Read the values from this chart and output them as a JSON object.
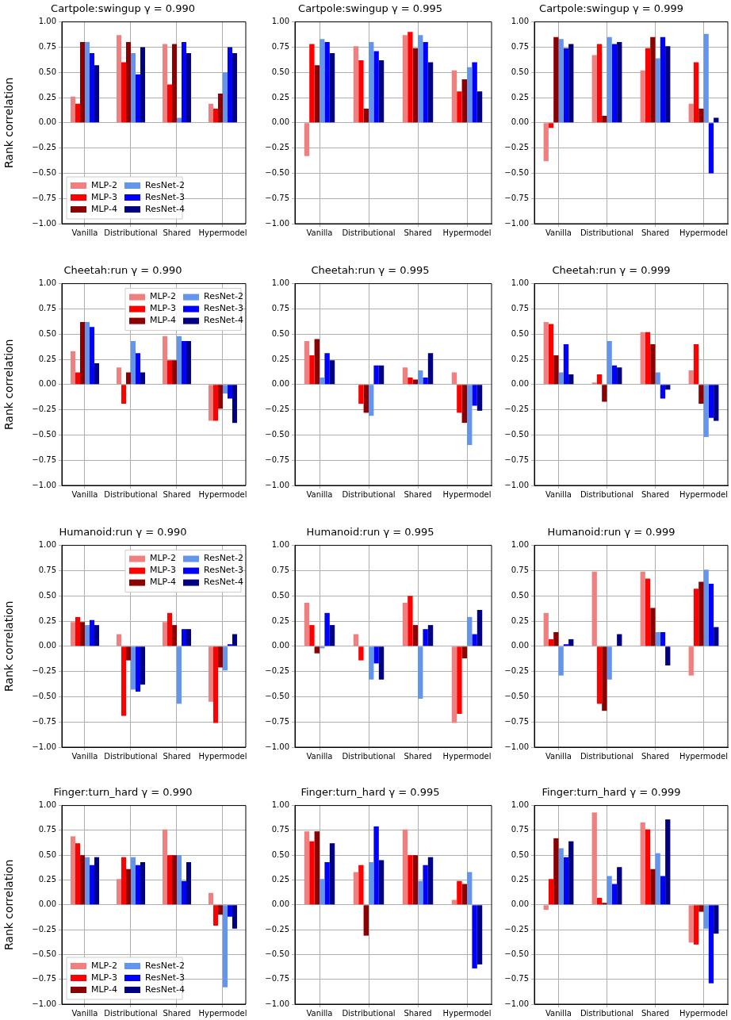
{
  "chart_data": [
    {
      "type": "bar",
      "title": "Cartpole:swingup γ = 0.990",
      "ylabel": "Rank correlation",
      "categories": [
        "Vanilla",
        "Distributional",
        "Shared",
        "Hypermodel"
      ],
      "ylim": [
        -1,
        1
      ],
      "yticks": [
        {
          "value": -1,
          "label": "−1.00"
        },
        {
          "value": -0.75,
          "label": "−0.75"
        },
        {
          "value": -0.5,
          "label": "−0.50"
        },
        {
          "value": -0.25,
          "label": "−0.25"
        },
        {
          "value": 0,
          "label": "0.00"
        },
        {
          "value": 0.25,
          "label": "0.25"
        },
        {
          "value": 0.5,
          "label": "0.50"
        },
        {
          "value": 0.75,
          "label": "0.75"
        },
        {
          "value": 1,
          "label": "1.00"
        }
      ],
      "grid": true,
      "legend": "bottom left",
      "series": [
        {
          "name": "MLP-2",
          "color": "#f08080",
          "values": [
            0.26,
            0.87,
            0.78,
            0.19
          ]
        },
        {
          "name": "MLP-3",
          "color": "#ff0000",
          "values": [
            0.19,
            0.6,
            0.38,
            0.14
          ]
        },
        {
          "name": "MLP-4",
          "color": "#8b0000",
          "values": [
            0.8,
            0.8,
            0.78,
            0.29
          ]
        },
        {
          "name": "ResNet-2",
          "color": "#6495ed",
          "values": [
            0.8,
            0.69,
            0.05,
            0.5
          ]
        },
        {
          "name": "ResNet-3",
          "color": "#0000ff",
          "values": [
            0.69,
            0.48,
            0.8,
            0.75
          ]
        },
        {
          "name": "ResNet-4",
          "color": "#000080",
          "values": [
            0.57,
            0.75,
            0.69,
            0.69
          ]
        }
      ]
    },
    {
      "type": "bar",
      "title": "Cartpole:swingup γ = 0.995",
      "categories": [
        "Vanilla",
        "Distributional",
        "Shared",
        "Hypermodel"
      ],
      "ylim": [
        -1,
        1
      ],
      "yticks": [
        {
          "value": -1,
          "label": "−1.00"
        },
        {
          "value": -0.75,
          "label": "−0.75"
        },
        {
          "value": -0.5,
          "label": "−0.50"
        },
        {
          "value": -0.25,
          "label": "−0.25"
        },
        {
          "value": 0,
          "label": "0.00"
        },
        {
          "value": 0.25,
          "label": "0.25"
        },
        {
          "value": 0.5,
          "label": "0.50"
        },
        {
          "value": 0.75,
          "label": "0.75"
        },
        {
          "value": 1,
          "label": "1.00"
        }
      ],
      "grid": true,
      "series": [
        {
          "color": "#f08080",
          "values": [
            -0.33,
            0.76,
            0.87,
            0.52
          ]
        },
        {
          "color": "#ff0000",
          "values": [
            0.78,
            0.62,
            0.9,
            0.31
          ]
        },
        {
          "color": "#8b0000",
          "values": [
            0.57,
            0.14,
            0.74,
            0.43
          ]
        },
        {
          "color": "#6495ed",
          "values": [
            0.83,
            0.8,
            0.87,
            0.55
          ]
        },
        {
          "color": "#0000ff",
          "values": [
            0.8,
            0.71,
            0.8,
            0.6
          ]
        },
        {
          "color": "#000080",
          "values": [
            0.69,
            0.62,
            0.6,
            0.31
          ]
        }
      ]
    },
    {
      "type": "bar",
      "title": "Cartpole:swingup γ = 0.999",
      "categories": [
        "Vanilla",
        "Distributional",
        "Shared",
        "Hypermodel"
      ],
      "ylim": [
        -1,
        1
      ],
      "yticks": [
        {
          "value": -1,
          "label": "−1.00"
        },
        {
          "value": -0.75,
          "label": "−0.75"
        },
        {
          "value": -0.5,
          "label": "−0.50"
        },
        {
          "value": -0.25,
          "label": "−0.25"
        },
        {
          "value": 0,
          "label": "0.00"
        },
        {
          "value": 0.25,
          "label": "0.25"
        },
        {
          "value": 0.5,
          "label": "0.50"
        },
        {
          "value": 0.75,
          "label": "0.75"
        },
        {
          "value": 1,
          "label": "1.00"
        }
      ],
      "grid": true,
      "series": [
        {
          "color": "#f08080",
          "values": [
            -0.38,
            0.67,
            0.52,
            0.19
          ]
        },
        {
          "color": "#ff0000",
          "values": [
            -0.05,
            0.78,
            0.74,
            0.6
          ]
        },
        {
          "color": "#8b0000",
          "values": [
            0.85,
            0.07,
            0.85,
            0.14
          ]
        },
        {
          "color": "#6495ed",
          "values": [
            0.83,
            0.85,
            0.64,
            0.88
          ]
        },
        {
          "color": "#0000ff",
          "values": [
            0.74,
            0.78,
            0.85,
            -0.5
          ]
        },
        {
          "color": "#000080",
          "values": [
            0.78,
            0.8,
            0.76,
            0.05
          ]
        }
      ]
    },
    {
      "type": "bar",
      "title": "Cheetah:run γ = 0.990",
      "ylabel": "Rank correlation",
      "categories": [
        "Vanilla",
        "Distributional",
        "Shared",
        "Hypermodel"
      ],
      "ylim": [
        -1,
        1
      ],
      "yticks": [
        {
          "value": -1,
          "label": "−1.00"
        },
        {
          "value": -0.75,
          "label": "−0.75"
        },
        {
          "value": -0.5,
          "label": "−0.50"
        },
        {
          "value": -0.25,
          "label": "−0.25"
        },
        {
          "value": 0,
          "label": "0.00"
        },
        {
          "value": 0.25,
          "label": "0.25"
        },
        {
          "value": 0.5,
          "label": "0.50"
        },
        {
          "value": 0.75,
          "label": "0.75"
        },
        {
          "value": 1,
          "label": "1.00"
        }
      ],
      "grid": true,
      "legend": "top right",
      "series": [
        {
          "name": "MLP-2",
          "color": "#f08080",
          "values": [
            0.33,
            0.17,
            0.48,
            -0.36
          ]
        },
        {
          "name": "MLP-3",
          "color": "#ff0000",
          "values": [
            0.12,
            -0.19,
            0.24,
            -0.36
          ]
        },
        {
          "name": "MLP-4",
          "color": "#8b0000",
          "values": [
            0.62,
            0.12,
            0.24,
            -0.24
          ]
        },
        {
          "name": "ResNet-2",
          "color": "#6495ed",
          "values": [
            0.62,
            0.43,
            0.48,
            -0.09
          ]
        },
        {
          "name": "ResNet-3",
          "color": "#0000ff",
          "values": [
            0.57,
            0.31,
            0.43,
            -0.14
          ]
        },
        {
          "name": "ResNet-4",
          "color": "#000080",
          "values": [
            0.21,
            0.12,
            0.43,
            -0.38
          ]
        }
      ]
    },
    {
      "type": "bar",
      "title": "Cheetah:run γ = 0.995",
      "categories": [
        "Vanilla",
        "Distributional",
        "Shared",
        "Hypermodel"
      ],
      "ylim": [
        -1,
        1
      ],
      "yticks": [
        {
          "value": -1,
          "label": "−1.00"
        },
        {
          "value": -0.75,
          "label": "−0.75"
        },
        {
          "value": -0.5,
          "label": "−0.50"
        },
        {
          "value": -0.25,
          "label": "−0.25"
        },
        {
          "value": 0,
          "label": "0.00"
        },
        {
          "value": 0.25,
          "label": "0.25"
        },
        {
          "value": 0.5,
          "label": "0.50"
        },
        {
          "value": 0.75,
          "label": "0.75"
        },
        {
          "value": 1,
          "label": "1.00"
        }
      ],
      "grid": true,
      "series": [
        {
          "color": "#f08080",
          "values": [
            0.43,
            0.0,
            0.17,
            0.12
          ]
        },
        {
          "color": "#ff0000",
          "values": [
            0.29,
            -0.19,
            0.07,
            -0.28
          ]
        },
        {
          "color": "#8b0000",
          "values": [
            0.45,
            -0.28,
            0.05,
            -0.38
          ]
        },
        {
          "color": "#6495ed",
          "values": [
            0.07,
            -0.31,
            0.14,
            -0.6
          ]
        },
        {
          "color": "#0000ff",
          "values": [
            0.31,
            0.19,
            0.07,
            -0.21
          ]
        },
        {
          "color": "#000080",
          "values": [
            0.24,
            0.19,
            0.31,
            -0.26
          ]
        }
      ]
    },
    {
      "type": "bar",
      "title": "Cheetah:run γ = 0.999",
      "categories": [
        "Vanilla",
        "Distributional",
        "Shared",
        "Hypermodel"
      ],
      "ylim": [
        -1,
        1
      ],
      "yticks": [
        {
          "value": -1,
          "label": "−1.00"
        },
        {
          "value": -0.75,
          "label": "−0.75"
        },
        {
          "value": -0.5,
          "label": "−0.50"
        },
        {
          "value": -0.25,
          "label": "−0.25"
        },
        {
          "value": 0,
          "label": "0.00"
        },
        {
          "value": 0.25,
          "label": "0.25"
        },
        {
          "value": 0.5,
          "label": "0.50"
        },
        {
          "value": 0.75,
          "label": "0.75"
        },
        {
          "value": 1,
          "label": "1.00"
        }
      ],
      "grid": true,
      "series": [
        {
          "color": "#f08080",
          "values": [
            0.62,
            0.02,
            0.52,
            0.14
          ]
        },
        {
          "color": "#ff0000",
          "values": [
            0.6,
            0.1,
            0.52,
            0.4
          ]
        },
        {
          "color": "#8b0000",
          "values": [
            0.29,
            -0.17,
            0.4,
            -0.19
          ]
        },
        {
          "color": "#6495ed",
          "values": [
            0.12,
            0.43,
            0.12,
            -0.52
          ]
        },
        {
          "color": "#0000ff",
          "values": [
            0.4,
            0.19,
            -0.14,
            -0.33
          ]
        },
        {
          "color": "#000080",
          "values": [
            0.1,
            0.17,
            -0.05,
            -0.36
          ]
        }
      ]
    },
    {
      "type": "bar",
      "title": "Humanoid:run γ = 0.990",
      "ylabel": "Rank correlation",
      "categories": [
        "Vanilla",
        "Distributional",
        "Shared",
        "Hypermodel"
      ],
      "ylim": [
        -1,
        1
      ],
      "yticks": [
        {
          "value": -1,
          "label": "−1.00"
        },
        {
          "value": -0.75,
          "label": "−0.75"
        },
        {
          "value": -0.5,
          "label": "−0.50"
        },
        {
          "value": -0.25,
          "label": "−0.25"
        },
        {
          "value": 0,
          "label": "0.00"
        },
        {
          "value": 0.25,
          "label": "0.25"
        },
        {
          "value": 0.5,
          "label": "0.50"
        },
        {
          "value": 0.75,
          "label": "0.75"
        },
        {
          "value": 1,
          "label": "1.00"
        }
      ],
      "grid": true,
      "legend": "top right",
      "series": [
        {
          "name": "MLP-2",
          "color": "#f08080",
          "values": [
            0.24,
            0.12,
            0.24,
            -0.55
          ]
        },
        {
          "name": "MLP-3",
          "color": "#ff0000",
          "values": [
            0.29,
            -0.69,
            0.33,
            -0.76
          ]
        },
        {
          "name": "MLP-4",
          "color": "#8b0000",
          "values": [
            0.24,
            -0.14,
            0.21,
            -0.21
          ]
        },
        {
          "name": "ResNet-2",
          "color": "#6495ed",
          "values": [
            0.21,
            -0.43,
            -0.57,
            -0.24
          ]
        },
        {
          "name": "ResNet-3",
          "color": "#0000ff",
          "values": [
            0.26,
            -0.45,
            0.17,
            0.02
          ]
        },
        {
          "name": "ResNet-4",
          "color": "#000080",
          "values": [
            0.21,
            -0.38,
            0.17,
            0.12
          ]
        }
      ]
    },
    {
      "type": "bar",
      "title": "Humanoid:run γ = 0.995",
      "categories": [
        "Vanilla",
        "Distributional",
        "Shared",
        "Hypermodel"
      ],
      "ylim": [
        -1,
        1
      ],
      "yticks": [
        {
          "value": -1,
          "label": "−1.00"
        },
        {
          "value": -0.75,
          "label": "−0.75"
        },
        {
          "value": -0.5,
          "label": "−0.50"
        },
        {
          "value": -0.25,
          "label": "−0.25"
        },
        {
          "value": 0,
          "label": "0.00"
        },
        {
          "value": 0.25,
          "label": "0.25"
        },
        {
          "value": 0.5,
          "label": "0.50"
        },
        {
          "value": 0.75,
          "label": "0.75"
        },
        {
          "value": 1,
          "label": "1.00"
        }
      ],
      "grid": true,
      "series": [
        {
          "color": "#f08080",
          "values": [
            0.43,
            0.12,
            0.43,
            -0.76
          ]
        },
        {
          "color": "#ff0000",
          "values": [
            0.21,
            -0.14,
            0.5,
            -0.67
          ]
        },
        {
          "color": "#8b0000",
          "values": [
            -0.07,
            0.0,
            0.21,
            -0.12
          ]
        },
        {
          "color": "#6495ed",
          "values": [
            -0.02,
            -0.33,
            -0.52,
            0.29
          ]
        },
        {
          "color": "#0000ff",
          "values": [
            0.33,
            -0.17,
            0.17,
            0.12
          ]
        },
        {
          "color": "#000080",
          "values": [
            0.21,
            -0.33,
            0.21,
            0.36
          ]
        }
      ]
    },
    {
      "type": "bar",
      "title": "Humanoid:run γ = 0.999",
      "categories": [
        "Vanilla",
        "Distributional",
        "Shared",
        "Hypermodel"
      ],
      "ylim": [
        -1,
        1
      ],
      "yticks": [
        {
          "value": -1,
          "label": "−1.00"
        },
        {
          "value": -0.75,
          "label": "−0.75"
        },
        {
          "value": -0.5,
          "label": "−0.50"
        },
        {
          "value": -0.25,
          "label": "−0.25"
        },
        {
          "value": 0,
          "label": "0.00"
        },
        {
          "value": 0.25,
          "label": "0.25"
        },
        {
          "value": 0.5,
          "label": "0.50"
        },
        {
          "value": 0.75,
          "label": "0.75"
        },
        {
          "value": 1,
          "label": "1.00"
        }
      ],
      "grid": true,
      "series": [
        {
          "color": "#f08080",
          "values": [
            0.33,
            0.74,
            0.74,
            -0.29
          ]
        },
        {
          "color": "#ff0000",
          "values": [
            0.07,
            -0.57,
            0.67,
            0.57
          ]
        },
        {
          "color": "#8b0000",
          "values": [
            0.14,
            -0.64,
            0.38,
            0.64
          ]
        },
        {
          "color": "#6495ed",
          "values": [
            -0.29,
            -0.33,
            0.14,
            0.76
          ]
        },
        {
          "color": "#0000ff",
          "values": [
            0.02,
            0.0,
            0.14,
            0.62
          ]
        },
        {
          "color": "#000080",
          "values": [
            0.07,
            0.12,
            -0.19,
            0.19
          ]
        }
      ]
    },
    {
      "type": "bar",
      "title": "Finger:turn_hard γ = 0.990",
      "ylabel": "Rank correlation",
      "categories": [
        "Vanilla",
        "Distributional",
        "Shared",
        "Hypermodel"
      ],
      "ylim": [
        -1,
        1
      ],
      "yticks": [
        {
          "value": -1,
          "label": "−1.00"
        },
        {
          "value": -0.75,
          "label": "−0.75"
        },
        {
          "value": -0.5,
          "label": "−0.50"
        },
        {
          "value": -0.25,
          "label": "−0.25"
        },
        {
          "value": 0,
          "label": "0.00"
        },
        {
          "value": 0.25,
          "label": "0.25"
        },
        {
          "value": 0.5,
          "label": "0.50"
        },
        {
          "value": 0.75,
          "label": "0.75"
        },
        {
          "value": 1,
          "label": "1.00"
        }
      ],
      "grid": true,
      "legend": "bottom left",
      "series": [
        {
          "name": "MLP-2",
          "color": "#f08080",
          "values": [
            0.69,
            0.26,
            0.76,
            0.12
          ]
        },
        {
          "name": "MLP-3",
          "color": "#ff0000",
          "values": [
            0.62,
            0.48,
            0.5,
            -0.21
          ]
        },
        {
          "name": "MLP-4",
          "color": "#8b0000",
          "values": [
            0.5,
            0.36,
            0.5,
            -0.1
          ]
        },
        {
          "name": "ResNet-2",
          "color": "#6495ed",
          "values": [
            0.48,
            0.48,
            0.5,
            -0.83
          ]
        },
        {
          "name": "ResNet-3",
          "color": "#0000ff",
          "values": [
            0.4,
            0.4,
            0.24,
            -0.12
          ]
        },
        {
          "name": "ResNet-4",
          "color": "#000080",
          "values": [
            0.48,
            0.43,
            0.43,
            -0.24
          ]
        }
      ]
    },
    {
      "type": "bar",
      "title": "Finger:turn_hard γ = 0.995",
      "categories": [
        "Vanilla",
        "Distributional",
        "Shared",
        "Hypermodel"
      ],
      "ylim": [
        -1,
        1
      ],
      "yticks": [
        {
          "value": -1,
          "label": "−1.00"
        },
        {
          "value": -0.75,
          "label": "−0.75"
        },
        {
          "value": -0.5,
          "label": "−0.50"
        },
        {
          "value": -0.25,
          "label": "−0.25"
        },
        {
          "value": 0,
          "label": "0.00"
        },
        {
          "value": 0.25,
          "label": "0.25"
        },
        {
          "value": 0.5,
          "label": "0.50"
        },
        {
          "value": 0.75,
          "label": "0.75"
        },
        {
          "value": 1,
          "label": "1.00"
        }
      ],
      "grid": true,
      "series": [
        {
          "color": "#f08080",
          "values": [
            0.74,
            0.33,
            0.76,
            0.05
          ]
        },
        {
          "color": "#ff0000",
          "values": [
            0.64,
            0.4,
            0.5,
            0.24
          ]
        },
        {
          "color": "#8b0000",
          "values": [
            0.74,
            -0.31,
            0.5,
            0.21
          ]
        },
        {
          "color": "#6495ed",
          "values": [
            0.26,
            0.43,
            0.24,
            0.33
          ]
        },
        {
          "color": "#0000ff",
          "values": [
            0.43,
            0.79,
            0.4,
            -0.64
          ]
        },
        {
          "color": "#000080",
          "values": [
            0.62,
            0.45,
            0.48,
            -0.6
          ]
        }
      ]
    },
    {
      "type": "bar",
      "title": "Finger:turn_hard γ = 0.999",
      "categories": [
        "Vanilla",
        "Distributional",
        "Shared",
        "Hypermodel"
      ],
      "ylim": [
        -1,
        1
      ],
      "yticks": [
        {
          "value": -1,
          "label": "−1.00"
        },
        {
          "value": -0.75,
          "label": "−0.75"
        },
        {
          "value": -0.5,
          "label": "−0.50"
        },
        {
          "value": -0.25,
          "label": "−0.25"
        },
        {
          "value": 0,
          "label": "0.00"
        },
        {
          "value": 0.25,
          "label": "0.25"
        },
        {
          "value": 0.5,
          "label": "0.50"
        },
        {
          "value": 0.75,
          "label": "0.75"
        },
        {
          "value": 1,
          "label": "1.00"
        }
      ],
      "grid": true,
      "series": [
        {
          "color": "#f08080",
          "values": [
            -0.05,
            0.93,
            0.83,
            -0.38
          ]
        },
        {
          "color": "#ff0000",
          "values": [
            0.26,
            0.07,
            0.76,
            -0.4
          ]
        },
        {
          "color": "#8b0000",
          "values": [
            0.67,
            0.02,
            0.36,
            -0.07
          ]
        },
        {
          "color": "#6495ed",
          "values": [
            0.57,
            0.29,
            0.52,
            -0.24
          ]
        },
        {
          "color": "#0000ff",
          "values": [
            0.48,
            0.21,
            0.29,
            -0.79
          ]
        },
        {
          "color": "#000080",
          "values": [
            0.64,
            0.38,
            0.86,
            -0.29
          ]
        }
      ]
    }
  ]
}
